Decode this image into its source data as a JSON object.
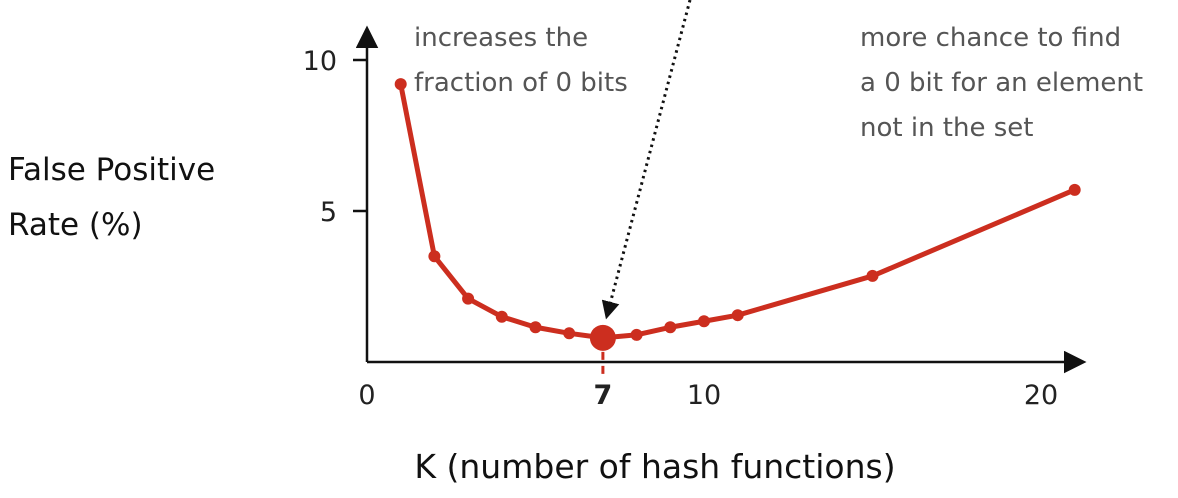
{
  "chart_data": {
    "type": "line",
    "title": "",
    "xlabel": "K (number of hash functions)",
    "ylabel_lines": [
      "False Positive",
      "Rate (%)"
    ],
    "xlim": [
      0,
      21
    ],
    "ylim": [
      0,
      10.5
    ],
    "xticks": [
      0,
      10,
      20
    ],
    "yticks": [
      5,
      10
    ],
    "series": [
      {
        "x": [
          1,
          2,
          3,
          4,
          5,
          6,
          7,
          8,
          9,
          10,
          11,
          15,
          21
        ],
        "y": [
          9.2,
          3.5,
          2.1,
          1.5,
          1.15,
          0.95,
          0.8,
          0.9,
          1.15,
          1.35,
          1.55,
          2.85,
          5.7
        ],
        "color": "#cc2e1f"
      }
    ],
    "optimum": {
      "x": 7,
      "y": 0.8,
      "label": "7",
      "color": "#cc2e1f"
    },
    "annotations": {
      "left": [
        "increases the",
        "fraction of 0 bits"
      ],
      "right": [
        "more chance to find",
        "a 0 bit for an element",
        "not in the set"
      ]
    }
  }
}
